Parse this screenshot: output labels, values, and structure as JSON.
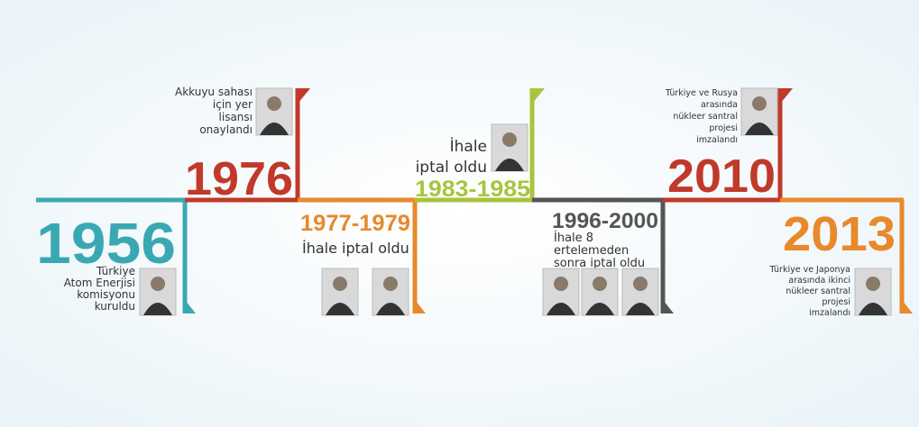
{
  "events": [
    {
      "year": "1956",
      "color": "#3aa8b2",
      "description": [
        "Türkiye",
        "Atom Enerjisi",
        "komisyonu",
        "kuruldu"
      ]
    },
    {
      "year": "1976",
      "color": "#c0392b",
      "description": [
        "Akkuyu sahası",
        "için yer",
        "lisansı",
        "onaylandı"
      ]
    },
    {
      "year": "1977-1979",
      "color": "#e8892b",
      "description": [
        "İhale iptal oldu"
      ]
    },
    {
      "year": "1983-1985",
      "color": "#a9c43d",
      "description": [
        "İhale",
        "iptal oldu"
      ]
    },
    {
      "year": "1996-2000",
      "color": "#555555",
      "description": [
        "İhale 8",
        "ertelemeden",
        "sonra iptal oldu"
      ]
    },
    {
      "year": "2010",
      "color": "#c0392b",
      "description": [
        "Türkiye ve Rusya",
        "arasında",
        "nükleer santral",
        "projesi",
        "imzalandı"
      ]
    },
    {
      "year": "2013",
      "color": "#e8892b",
      "description": [
        "Türkiye ve Japonya",
        "arasında ikinci",
        "nükleer santral",
        "projesi",
        "imzalandı"
      ]
    }
  ]
}
